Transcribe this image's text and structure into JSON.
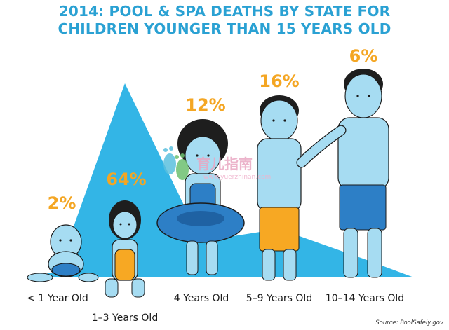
{
  "chart_data": {
    "type": "area",
    "title_lines": [
      "2014: POOL & SPA DEATHS BY STATE FOR",
      "CHILDREN YOUNGER THAN 15 YEARS OLD"
    ],
    "categories": [
      "< 1 Year Old",
      "1–3 Years Old",
      "4 Years Old",
      "5–9 Years Old",
      "10–14 Years Old"
    ],
    "values": [
      2,
      64,
      12,
      16,
      6
    ],
    "value_labels": [
      "2%",
      "64%",
      "12%",
      "16%",
      "6%"
    ],
    "ylim": [
      0,
      70
    ],
    "grid": false,
    "legend": "none",
    "colors": {
      "title": "#2aa1d3",
      "area": "#33b5e6",
      "value_label": "#f4a623",
      "skin": "#a6dcf2",
      "hair": "#1e1e1e",
      "swimwear_orange": "#f7a823",
      "swimwear_blue": "#2d7fc6"
    }
  },
  "source": "Source: PoolSafely.gov",
  "watermark": {
    "logo_text": "育儿指南",
    "url": "www.yuerzhinan.com"
  }
}
